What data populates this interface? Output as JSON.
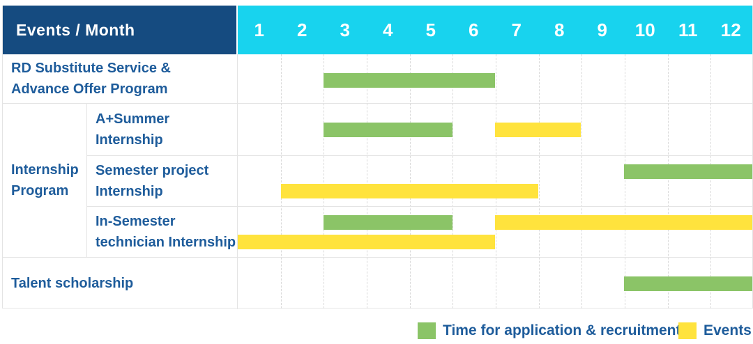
{
  "header": {
    "title": "Events / Month",
    "months": [
      "1",
      "2",
      "3",
      "4",
      "5",
      "6",
      "7",
      "8",
      "9",
      "10",
      "11",
      "12"
    ]
  },
  "rows": {
    "group_label": "Internship\nProgram",
    "rd": {
      "label": "RD Substitute Service &\nAdvance Offer Program",
      "bars": [
        {
          "type": "application",
          "start": 3,
          "end": 6,
          "line": "single"
        }
      ]
    },
    "a_summer": {
      "label": "A+Summer\nInternship",
      "bars": [
        {
          "type": "application",
          "start": 3,
          "end": 5,
          "line": "single"
        },
        {
          "type": "events",
          "start": 7,
          "end": 8,
          "line": "single"
        }
      ]
    },
    "semester": {
      "label": "Semester project\nInternship",
      "bars": [
        {
          "type": "application",
          "start": 10,
          "end": 12,
          "line": "upper"
        },
        {
          "type": "events",
          "start": 2,
          "end": 7,
          "line": "lower"
        }
      ]
    },
    "in_semester": {
      "label": "In-Semester\ntechnician Internship",
      "bars": [
        {
          "type": "application",
          "start": 3,
          "end": 5,
          "line": "upper"
        },
        {
          "type": "events",
          "start": 7,
          "end": 12,
          "line": "upper"
        },
        {
          "type": "events",
          "start": 1,
          "end": 6,
          "line": "lower"
        }
      ]
    },
    "talent": {
      "label": "Talent scholarship",
      "bars": [
        {
          "type": "application",
          "start": 10,
          "end": 12,
          "line": "single"
        }
      ]
    }
  },
  "legend": {
    "application_label": "Time for application & recruitment",
    "events_label": "Events"
  },
  "colors": {
    "header_bg": "#154b80",
    "months_bg": "#18d3ee",
    "header_text": "#ffffff",
    "label_text": "#1e5c9b",
    "application": "#8bc467",
    "events": "#ffe33d",
    "border": "#e4e4e4",
    "gridline": "#d9d9d9"
  },
  "chart_data": {
    "type": "gantt",
    "title": "Events / Month",
    "x_axis": {
      "label": "Month",
      "ticks": [
        1,
        2,
        3,
        4,
        5,
        6,
        7,
        8,
        9,
        10,
        11,
        12
      ],
      "range": [
        1,
        13
      ],
      "grid": "dashed-vertical"
    },
    "legend_position": "bottom-right",
    "series_types": [
      {
        "name": "Time for application & recruitment",
        "color": "#8bc467"
      },
      {
        "name": "Events",
        "color": "#ffe33d"
      }
    ],
    "tasks": [
      {
        "name": "RD Substitute Service & Advance Offer Program",
        "group": null,
        "bars": [
          {
            "series": "Time for application & recruitment",
            "start_month": 3,
            "end_month": 6
          }
        ]
      },
      {
        "name": "A+Summer Internship",
        "group": "Internship Program",
        "bars": [
          {
            "series": "Time for application & recruitment",
            "start_month": 3,
            "end_month": 5
          },
          {
            "series": "Events",
            "start_month": 7,
            "end_month": 8
          }
        ]
      },
      {
        "name": "Semester project Internship",
        "group": "Internship Program",
        "bars": [
          {
            "series": "Time for application & recruitment",
            "start_month": 10,
            "end_month": 12
          },
          {
            "series": "Events",
            "start_month": 2,
            "end_month": 7
          }
        ]
      },
      {
        "name": "In-Semester technician Internship",
        "group": "Internship Program",
        "bars": [
          {
            "series": "Time for application & recruitment",
            "start_month": 3,
            "end_month": 5
          },
          {
            "series": "Events",
            "start_month": 7,
            "end_month": 12
          },
          {
            "series": "Events",
            "start_month": 1,
            "end_month": 6
          }
        ]
      },
      {
        "name": "Talent scholarship",
        "group": null,
        "bars": [
          {
            "series": "Time for application & recruitment",
            "start_month": 10,
            "end_month": 12
          }
        ]
      }
    ]
  }
}
